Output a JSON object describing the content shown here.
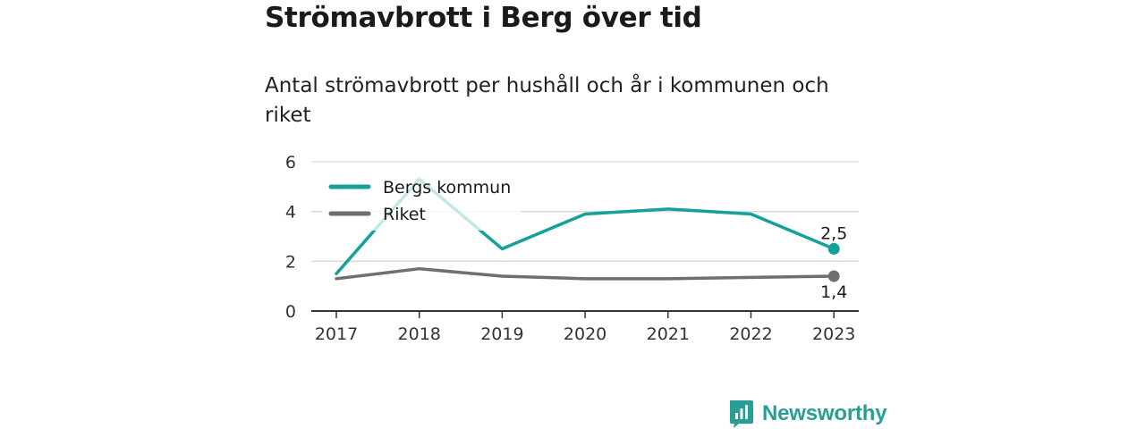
{
  "header": {
    "title": "Strömavbrott i Berg över tid",
    "subtitle": "Antal strömavbrott per hushåll och år i kommunen och riket"
  },
  "colors": {
    "kommun": "#14a199",
    "riket": "#6e6e73",
    "grid": "#d9d9d9",
    "axis": "#333333"
  },
  "chart_data": {
    "type": "line",
    "x": [
      "2017",
      "2018",
      "2019",
      "2020",
      "2021",
      "2022",
      "2023"
    ],
    "series": [
      {
        "name": "Bergs kommun",
        "values": [
          1.5,
          5.3,
          2.5,
          3.9,
          4.1,
          3.9,
          2.5
        ],
        "end_label": "2,5"
      },
      {
        "name": "Riket",
        "values": [
          1.3,
          1.7,
          1.4,
          1.3,
          1.3,
          1.35,
          1.4
        ],
        "end_label": "1,4"
      }
    ],
    "y_ticks": [
      "0",
      "2",
      "4",
      "6"
    ],
    "ylim": [
      0,
      6
    ],
    "grid": true,
    "legend_position": "top-left"
  },
  "brand": {
    "name": "Newsworthy",
    "icon": "newsworthy-logo-icon"
  }
}
